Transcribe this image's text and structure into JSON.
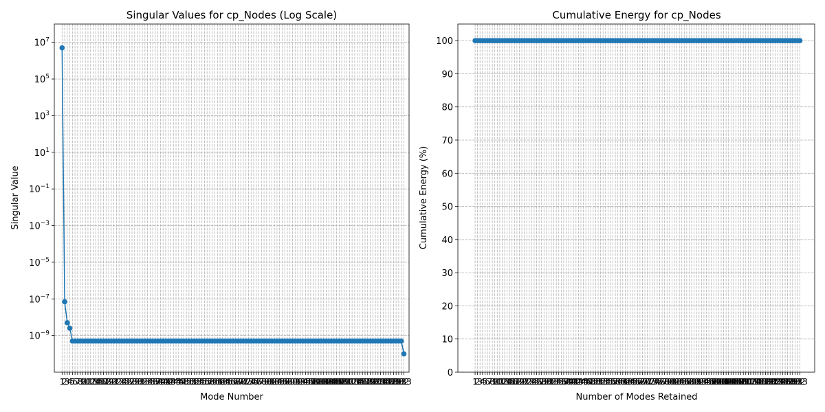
{
  "chart_data": [
    {
      "type": "line",
      "title": "Singular Values for cp_Nodes (Log Scale)",
      "xlabel": "Mode Number",
      "ylabel": "Singular Value",
      "yscale": "log",
      "ylim": [
        1e-11,
        100000000.0
      ],
      "xlim": [
        -2,
        135
      ],
      "grid": true,
      "color": "#1f77b4",
      "x_ticks": "1 to 133 (every mode, labels overlapping)",
      "y_tick_labels": [
        "10^-9",
        "10^-7",
        "10^-5",
        "10^-3",
        "10^-1",
        "10^1",
        "10^3",
        "10^5",
        "10^7"
      ],
      "series": [
        {
          "n_modes": 133,
          "values_head": [
            5000000,
            7e-08,
            5e-09,
            2.5e-09
          ],
          "values_middle": 5e-10,
          "values_tail": [
            1e-10
          ]
        }
      ]
    },
    {
      "type": "line",
      "title": "Cumulative Energy for cp_Nodes",
      "xlabel": "Number of Modes Retained",
      "ylabel": "Cumulative Energy (%)",
      "ylim": [
        0,
        105
      ],
      "xlim": [
        -6,
        139
      ],
      "grid": true,
      "color": "#1f77b4",
      "x_ticks": "1 to 133 (every mode, labels overlapping)",
      "y_tick_labels": [
        "0",
        "10",
        "20",
        "30",
        "40",
        "50",
        "60",
        "70",
        "80",
        "90",
        "100"
      ],
      "series": [
        {
          "n_modes": 133,
          "constant_value": 100
        }
      ]
    }
  ]
}
